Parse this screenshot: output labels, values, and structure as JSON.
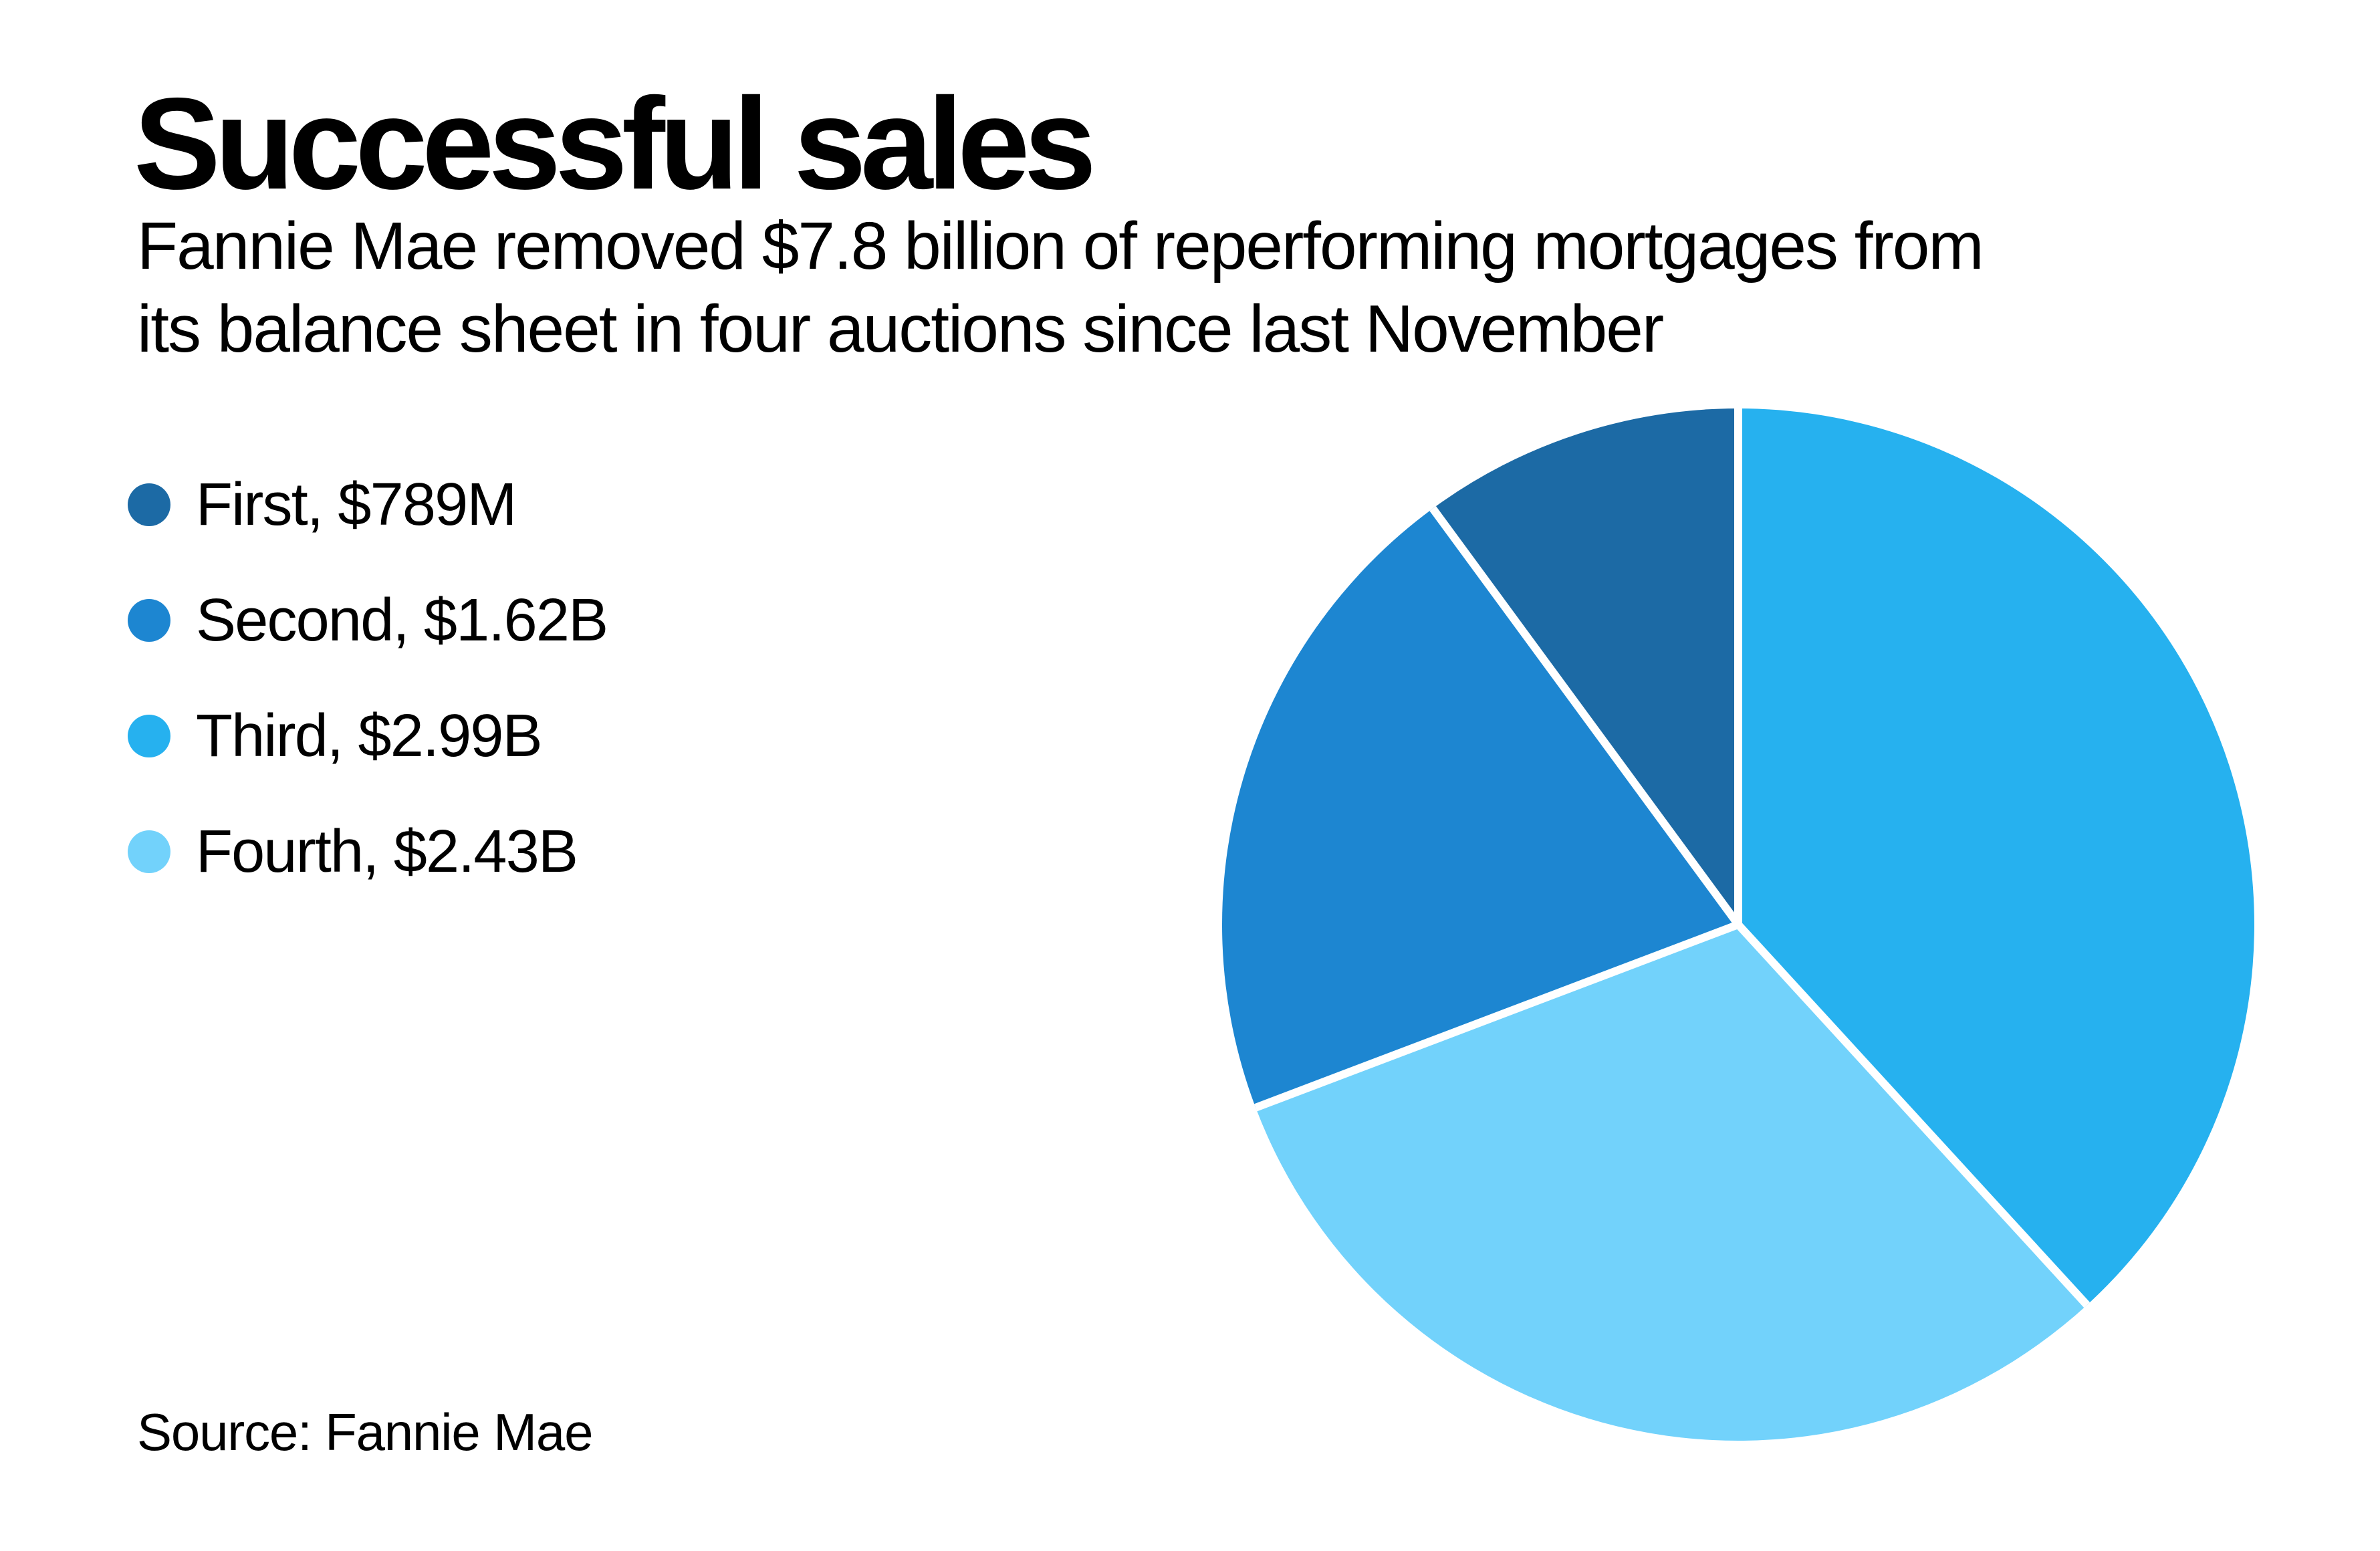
{
  "source": {
    "label": "Source: Fannie Mae"
  },
  "colors": {
    "background": "#ffffff",
    "text": "#000000",
    "slice_separator": "#ffffff"
  },
  "chart_data": {
    "type": "pie",
    "title": "Successful sales",
    "subtitle_lines": [
      "Fannie Mae removed $7.8 billion of reperforming mortgages from",
      "its balance sheet in four auctions since last November"
    ],
    "unit": "USD billions",
    "total_billions": 7.829,
    "slices": [
      {
        "name": "First",
        "label": "First, $789M",
        "value": 0.789,
        "color": "#1c6aa5"
      },
      {
        "name": "Second",
        "label": "Second, $1.62B",
        "value": 1.62,
        "color": "#1d86d1"
      },
      {
        "name": "Third",
        "label": "Third, $2.99B",
        "value": 2.99,
        "color": "#26b1ef"
      },
      {
        "name": "Fourth",
        "label": "Fourth, $2.43B",
        "value": 2.43,
        "color": "#72d2fb"
      }
    ],
    "clockwise_order_from_top": [
      "Third",
      "Fourth",
      "Second",
      "First"
    ],
    "start_angle_deg": 0,
    "legend_position": "left",
    "slice_separator_color": "#ffffff",
    "grid": false
  }
}
